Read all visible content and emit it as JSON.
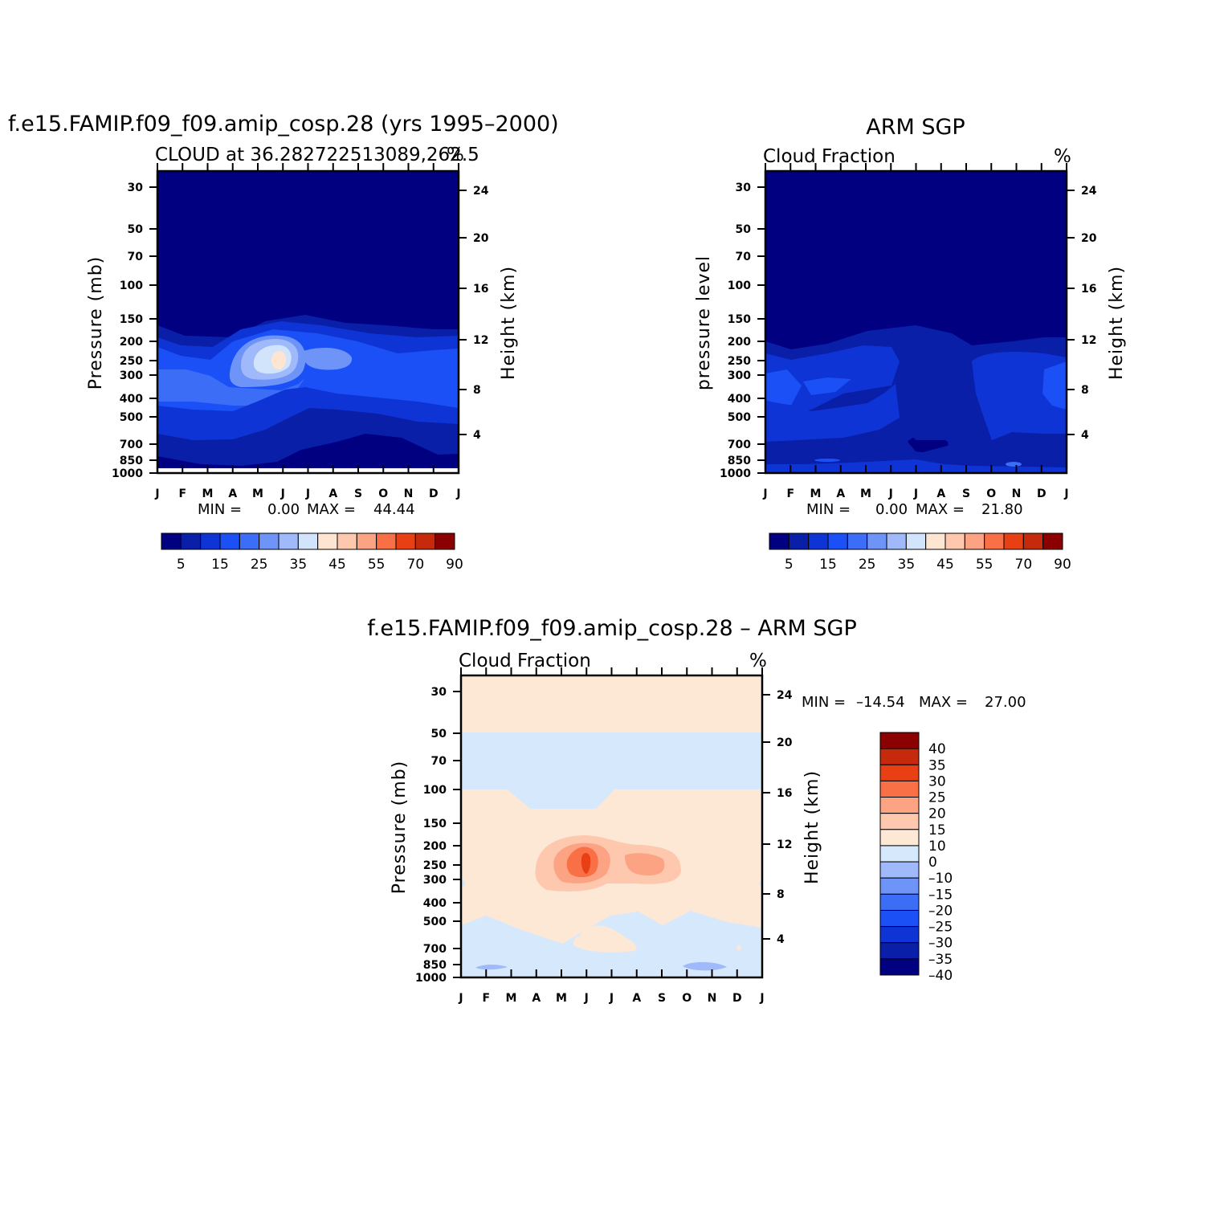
{
  "figure": {
    "panels": [
      {
        "title": "f.e15.FAMIP.f09_f09.amip_cosp.28 (yrs 1995–2000)",
        "subtitle_left": "CLOUD at 36.282722513089,262.5",
        "subtitle_right": "%",
        "left_axis_label": "Pressure (mb)",
        "right_axis_label": "Height (km)",
        "stats": {
          "min_label": "MIN =",
          "min": "0.00",
          "max_label": "MAX =",
          "max": "44.44"
        },
        "colorbar_labels": [
          "5",
          "15",
          "25",
          "35",
          "45",
          "55",
          "70",
          "90"
        ]
      },
      {
        "title": "ARM SGP",
        "subtitle_left": "Cloud Fraction",
        "subtitle_right": "%",
        "left_axis_label": "pressure level",
        "right_axis_label": "Height (km)",
        "stats": {
          "min_label": "MIN =",
          "min": "0.00",
          "max_label": "MAX =",
          "max": "21.80"
        },
        "colorbar_labels": [
          "5",
          "15",
          "25",
          "35",
          "45",
          "55",
          "70",
          "90"
        ]
      },
      {
        "title": "f.e15.FAMIP.f09_f09.amip_cosp.28 – ARM SGP",
        "subtitle_left": "Cloud Fraction",
        "subtitle_right": "%",
        "left_axis_label": "Pressure (mb)",
        "right_axis_label": "Height (km)",
        "stats": {
          "min_label": "MIN =",
          "min": "–14.54",
          "max_label": "MAX =",
          "max": "27.00"
        },
        "colorbar_labels": [
          "40",
          "35",
          "30",
          "25",
          "20",
          "15",
          "10",
          "0",
          "–10",
          "–15",
          "–20",
          "–25",
          "–30",
          "–35",
          "–40"
        ]
      }
    ],
    "months": [
      "J",
      "F",
      "M",
      "A",
      "M",
      "J",
      "J",
      "A",
      "S",
      "O",
      "N",
      "D",
      "J"
    ],
    "pressure_ticks": [
      "30",
      "50",
      "70",
      "100",
      "150",
      "200",
      "250",
      "300",
      "400",
      "500",
      "700",
      "850",
      "1000"
    ],
    "height_ticks": [
      "24",
      "20",
      "16",
      "12",
      "8",
      "4"
    ]
  },
  "chart_data": [
    {
      "type": "heatmap",
      "title": "f.e15.FAMIP.f09_f09.amip_cosp.28 (yrs 1995–2000)",
      "subtitle": "CLOUD at 36.282722513089,262.5",
      "units": "%",
      "x": [
        "J",
        "F",
        "M",
        "A",
        "M",
        "J",
        "J",
        "A",
        "S",
        "O",
        "N",
        "D",
        "J"
      ],
      "y_left": [
        30,
        50,
        70,
        100,
        150,
        200,
        250,
        300,
        400,
        500,
        700,
        850,
        1000
      ],
      "y_left_label": "Pressure (mb)",
      "y_right": [
        24,
        20,
        16,
        12,
        8,
        4
      ],
      "y_right_label": "Height (km)",
      "min": 0.0,
      "max": 44.44,
      "levels": [
        5,
        10,
        15,
        20,
        25,
        30,
        35,
        40,
        45,
        50,
        55,
        60,
        70,
        80,
        90
      ],
      "colors": [
        "#000080",
        "#0a1fa8",
        "#0f34d6",
        "#1a50f5",
        "#3b6df7",
        "#6e94f8",
        "#9fb9fa",
        "#d2e4fb",
        "#fde5d2",
        "#fdc8ad",
        "#fca384",
        "#f97046",
        "#e93f14",
        "#c52a0d",
        "#8b0000"
      ]
    },
    {
      "type": "heatmap",
      "title": "ARM SGP",
      "subtitle": "Cloud Fraction",
      "units": "%",
      "x": [
        "J",
        "F",
        "M",
        "A",
        "M",
        "J",
        "J",
        "A",
        "S",
        "O",
        "N",
        "D",
        "J"
      ],
      "y_left": [
        30,
        50,
        70,
        100,
        150,
        200,
        250,
        300,
        400,
        500,
        700,
        850,
        1000
      ],
      "y_left_label": "pressure level",
      "y_right": [
        24,
        20,
        16,
        12,
        8,
        4
      ],
      "y_right_label": "Height (km)",
      "min": 0.0,
      "max": 21.8,
      "levels": [
        5,
        10,
        15,
        20,
        25,
        30,
        35,
        40,
        45,
        50,
        55,
        60,
        70,
        80,
        90
      ],
      "colors": [
        "#000080",
        "#0a1fa8",
        "#0f34d6",
        "#1a50f5",
        "#3b6df7",
        "#6e94f8",
        "#9fb9fa",
        "#d2e4fb",
        "#fde5d2",
        "#fdc8ad",
        "#fca384",
        "#f97046",
        "#e93f14",
        "#c52a0d",
        "#8b0000"
      ]
    },
    {
      "type": "heatmap",
      "title": "f.e15.FAMIP.f09_f09.amip_cosp.28 – ARM SGP",
      "subtitle": "Cloud Fraction",
      "units": "%",
      "x": [
        "J",
        "F",
        "M",
        "A",
        "M",
        "J",
        "J",
        "A",
        "S",
        "O",
        "N",
        "D",
        "J"
      ],
      "y_left": [
        30,
        50,
        70,
        100,
        150,
        200,
        250,
        300,
        400,
        500,
        700,
        850,
        1000
      ],
      "y_left_label": "Pressure (mb)",
      "y_right": [
        24,
        20,
        16,
        12,
        8,
        4
      ],
      "y_right_label": "Height (km)",
      "min": -14.54,
      "max": 27.0,
      "levels": [
        -40,
        -35,
        -30,
        -25,
        -20,
        -15,
        -10,
        0,
        10,
        15,
        20,
        25,
        30,
        35,
        40
      ],
      "colors": [
        "#000080",
        "#0a1fa8",
        "#0f34d6",
        "#1a50f5",
        "#3b6df7",
        "#6e94f8",
        "#9fb9fa",
        "#d6e8fc",
        "#fde8d6",
        "#fdc8ad",
        "#fca384",
        "#f97046",
        "#e93f14",
        "#c52a0d",
        "#8b0000"
      ]
    }
  ]
}
